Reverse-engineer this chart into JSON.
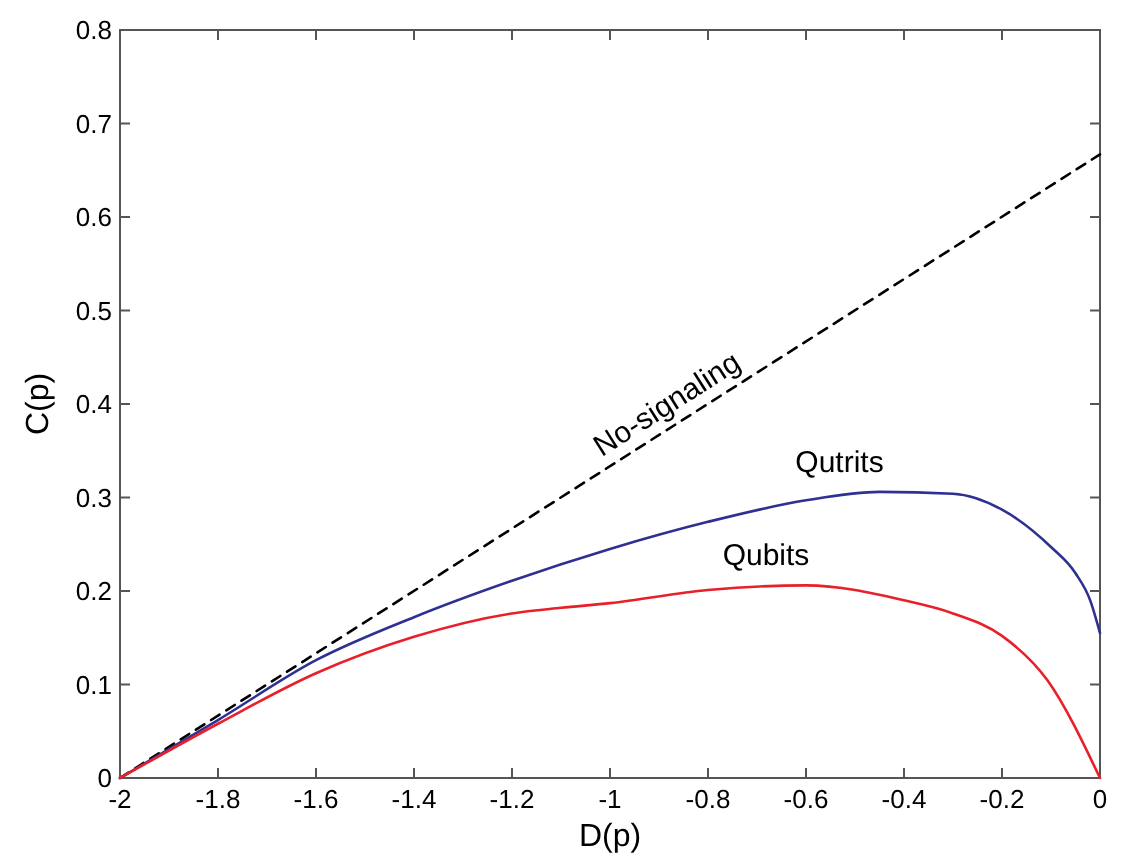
{
  "chart_data": {
    "type": "line",
    "xlabel": "D(p)",
    "ylabel": "C(p)",
    "xlim": [
      -2,
      0
    ],
    "ylim": [
      0,
      0.8
    ],
    "xticks": [
      -2,
      -1.8,
      -1.6,
      -1.4,
      -1.2,
      -1,
      -0.8,
      -0.6,
      -0.4,
      -0.2,
      0
    ],
    "yticks": [
      0,
      0.1,
      0.2,
      0.3,
      0.4,
      0.5,
      0.6,
      0.7,
      0.8
    ],
    "series": [
      {
        "name": "No-signaling",
        "color": "#000000",
        "line_style": "dashed",
        "x": [
          -2,
          0
        ],
        "values": [
          0,
          0.667
        ]
      },
      {
        "name": "Qutrits",
        "color": "#2e3192",
        "line_style": "solid",
        "x": [
          -2,
          -1.8,
          -1.6,
          -1.4,
          -1.2,
          -1,
          -0.8,
          -0.6,
          -0.45,
          -0.3,
          -0.2,
          -0.1,
          -0.05,
          -0.02,
          0
        ],
        "values": [
          0,
          0.062,
          0.126,
          0.172,
          0.211,
          0.245,
          0.274,
          0.297,
          0.306,
          0.304,
          0.287,
          0.247,
          0.219,
          0.19,
          0.155
        ]
      },
      {
        "name": "Qubits",
        "color": "#e8202a",
        "line_style": "solid",
        "x": [
          -2,
          -1.8,
          -1.6,
          -1.4,
          -1.2,
          -1.1,
          -1,
          -0.8,
          -0.6,
          -0.4,
          -0.3,
          -0.2,
          -0.108,
          0
        ],
        "values": [
          0,
          0.058,
          0.112,
          0.151,
          0.176,
          0.182,
          0.187,
          0.201,
          0.206,
          0.19,
          0.176,
          0.152,
          0.105,
          0
        ]
      }
    ]
  }
}
